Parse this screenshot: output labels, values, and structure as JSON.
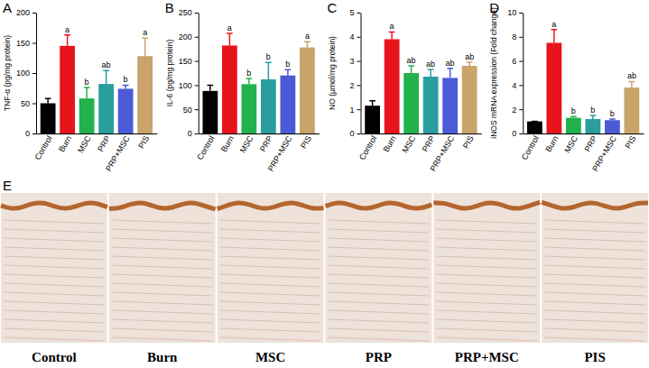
{
  "chart_data": [
    {
      "type": "bar",
      "title": "A",
      "y_label": "TNF-α (pg/mg protein)",
      "categories": [
        "Control",
        "Burn",
        "MSC",
        "PRP",
        "PRP+MSC",
        "PIS"
      ],
      "values": [
        50,
        145,
        58,
        82,
        74,
        128
      ],
      "errors": [
        8,
        18,
        18,
        22,
        6,
        30
      ],
      "annotations": [
        null,
        "a",
        "b",
        "ab",
        "b",
        "a"
      ],
      "colors": [
        "#000000",
        "#e8141c",
        "#22b14c",
        "#2a9d9f",
        "#4b5bd6",
        "#c8a46a"
      ],
      "ylim": [
        0,
        200
      ],
      "yticks": [
        0,
        50,
        100,
        150,
        200
      ]
    },
    {
      "type": "bar",
      "title": "B",
      "y_label": "IL-6 (pg/mg protein)",
      "categories": [
        "Control",
        "Burn",
        "MSC",
        "PRP",
        "PRP+MSC",
        "PIS"
      ],
      "values": [
        88,
        182,
        102,
        112,
        120,
        178
      ],
      "errors": [
        12,
        25,
        12,
        35,
        12,
        12
      ],
      "annotations": [
        null,
        "a",
        "b",
        "b",
        "b",
        "a"
      ],
      "colors": [
        "#000000",
        "#e8141c",
        "#22b14c",
        "#2a9d9f",
        "#4b5bd6",
        "#c8a46a"
      ],
      "ylim": [
        0,
        250
      ],
      "yticks": [
        0,
        50,
        100,
        150,
        200,
        250
      ]
    },
    {
      "type": "bar",
      "title": "C",
      "y_label": "NO (μmol/mg protein)",
      "categories": [
        "Control",
        "Burn",
        "MSC",
        "PRP",
        "PRP+MSC",
        "PIS"
      ],
      "values": [
        1.15,
        3.9,
        2.5,
        2.35,
        2.3,
        2.8
      ],
      "errors": [
        0.2,
        0.3,
        0.3,
        0.3,
        0.4,
        0.15
      ],
      "annotations": [
        null,
        "a",
        "ab",
        "ab",
        "ab",
        "ab"
      ],
      "colors": [
        "#000000",
        "#e8141c",
        "#22b14c",
        "#2a9d9f",
        "#4b5bd6",
        "#c8a46a"
      ],
      "ylim": [
        0,
        5
      ],
      "yticks": [
        0,
        1,
        2,
        3,
        4,
        5
      ]
    },
    {
      "type": "bar",
      "title": "D",
      "y_label": "iNOS mRNA expression (Fold change)",
      "categories": [
        "Control",
        "Burn",
        "MSC",
        "PRP",
        "PRP+MSC",
        "PIS"
      ],
      "values": [
        1,
        7.5,
        1.3,
        1.2,
        1.1,
        3.8
      ],
      "errors": [
        0,
        1.1,
        0.1,
        0.3,
        0.1,
        0.5
      ],
      "annotations": [
        null,
        "a",
        "b",
        "b",
        "b",
        "ab"
      ],
      "colors": [
        "#000000",
        "#e8141c",
        "#22b14c",
        "#2a9d9f",
        "#4b5bd6",
        "#c8a46a"
      ],
      "ylim": [
        0,
        10
      ],
      "yticks": [
        0,
        2,
        4,
        6,
        8,
        10
      ]
    }
  ],
  "images": {
    "label": "E",
    "captions": [
      "Control",
      "Burn",
      "MSC",
      "PRP",
      "PRP+MSC",
      "PIS"
    ]
  }
}
